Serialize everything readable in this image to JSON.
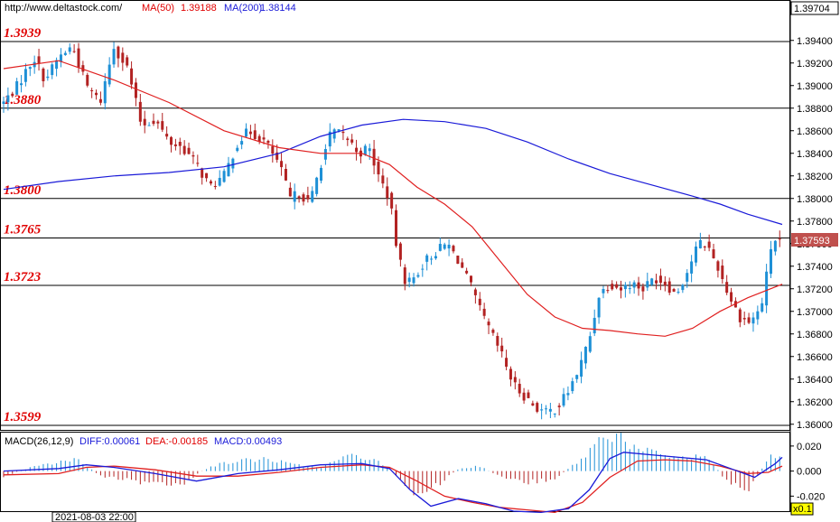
{
  "header": {
    "url": "http://www.deltastock.com/",
    "ma50_label": "MA(50)",
    "ma50_value": "1.39188",
    "ma200_label": "MA(200)",
    "ma200_value": "1.38144",
    "top_right_price": "1.39704"
  },
  "macd_header": {
    "title": "MACD(26,12,9)",
    "diff_text": "DIFF:0.00061",
    "dea_text": "DEA:-0.00185",
    "macd_text": "MACD:0.00493"
  },
  "bottom": {
    "date_label": "2021-08-03 22:00",
    "zoom_label": "x0.1"
  },
  "colors": {
    "up": "#1e90d6",
    "down": "#b22222",
    "ma50": "#e02020",
    "ma200": "#1a1ad8",
    "grid": "#000000"
  },
  "chart_data": [
    {
      "type": "candlestick",
      "ylim": [
        1.3595,
        1.3975
      ],
      "y_ticks": [
        "1.39400",
        "1.39200",
        "1.39000",
        "1.38800",
        "1.38600",
        "1.38400",
        "1.38200",
        "1.38000",
        "1.37800",
        "1.37600",
        "1.37400",
        "1.37200",
        "1.37000",
        "1.36800",
        "1.36600",
        "1.36400",
        "1.36200",
        "1.36000"
      ],
      "levels": [
        {
          "value": 1.3939,
          "label": "1.3939"
        },
        {
          "value": 1.388,
          "label": "1.3880"
        },
        {
          "value": 1.38,
          "label": "1.3800"
        },
        {
          "value": 1.3765,
          "label": "1.3765"
        },
        {
          "value": 1.3723,
          "label": "1.3723"
        },
        {
          "value": 1.3599,
          "label": "1.3599"
        }
      ],
      "last_price": "1.37593",
      "close_path": [
        [
          0,
          1.3885
        ],
        [
          10,
          1.39
        ],
        [
          22,
          1.3925
        ],
        [
          30,
          1.3905
        ],
        [
          40,
          1.3925
        ],
        [
          50,
          1.3935
        ],
        [
          60,
          1.39
        ],
        [
          70,
          1.3885
        ],
        [
          80,
          1.3935
        ],
        [
          90,
          1.3915
        ],
        [
          95,
          1.389
        ],
        [
          100,
          1.3865
        ],
        [
          110,
          1.387
        ],
        [
          120,
          1.385
        ],
        [
          130,
          1.3845
        ],
        [
          140,
          1.383
        ],
        [
          150,
          1.381
        ],
        [
          160,
          1.382
        ],
        [
          170,
          1.385
        ],
        [
          178,
          1.386
        ],
        [
          190,
          1.385
        ],
        [
          200,
          1.383
        ],
        [
          208,
          1.38
        ],
        [
          215,
          1.3805
        ],
        [
          222,
          1.3795
        ],
        [
          230,
          1.383
        ],
        [
          238,
          1.386
        ],
        [
          248,
          1.3855
        ],
        [
          258,
          1.384
        ],
        [
          265,
          1.3845
        ],
        [
          272,
          1.382
        ],
        [
          280,
          1.38
        ],
        [
          286,
          1.375
        ],
        [
          292,
          1.3725
        ],
        [
          298,
          1.373
        ],
        [
          306,
          1.3745
        ],
        [
          316,
          1.3755
        ],
        [
          322,
          1.376
        ],
        [
          330,
          1.3745
        ],
        [
          338,
          1.3725
        ],
        [
          346,
          1.37
        ],
        [
          354,
          1.368
        ],
        [
          362,
          1.366
        ],
        [
          370,
          1.3635
        ],
        [
          378,
          1.3625
        ],
        [
          386,
          1.3615
        ],
        [
          394,
          1.361
        ],
        [
          402,
          1.3615
        ],
        [
          410,
          1.363
        ],
        [
          418,
          1.365
        ],
        [
          426,
          1.368
        ],
        [
          432,
          1.3715
        ],
        [
          440,
          1.3725
        ],
        [
          448,
          1.372
        ],
        [
          456,
          1.3725
        ],
        [
          464,
          1.372
        ],
        [
          472,
          1.373
        ],
        [
          480,
          1.3725
        ],
        [
          488,
          1.3715
        ],
        [
          496,
          1.3735
        ],
        [
          504,
          1.376
        ],
        [
          510,
          1.376
        ],
        [
          518,
          1.374
        ],
        [
          526,
          1.3715
        ],
        [
          534,
          1.3695
        ],
        [
          542,
          1.369
        ],
        [
          550,
          1.3705
        ],
        [
          558,
          1.3765
        ],
        [
          565,
          1.376
        ]
      ],
      "ma50": [
        [
          0,
          1.3915
        ],
        [
          40,
          1.3922
        ],
        [
          80,
          1.3905
        ],
        [
          120,
          1.3885
        ],
        [
          160,
          1.386
        ],
        [
          200,
          1.3845
        ],
        [
          230,
          1.384
        ],
        [
          260,
          1.384
        ],
        [
          280,
          1.383
        ],
        [
          300,
          1.381
        ],
        [
          320,
          1.3795
        ],
        [
          340,
          1.3775
        ],
        [
          360,
          1.3745
        ],
        [
          380,
          1.3715
        ],
        [
          400,
          1.3695
        ],
        [
          420,
          1.3685
        ],
        [
          440,
          1.3683
        ],
        [
          460,
          1.368
        ],
        [
          480,
          1.3678
        ],
        [
          500,
          1.3685
        ],
        [
          520,
          1.37
        ],
        [
          540,
          1.3712
        ],
        [
          565,
          1.3724
        ]
      ],
      "ma200": [
        [
          0,
          1.3808
        ],
        [
          40,
          1.3815
        ],
        [
          80,
          1.382
        ],
        [
          120,
          1.3823
        ],
        [
          160,
          1.3828
        ],
        [
          200,
          1.384
        ],
        [
          230,
          1.3855
        ],
        [
          260,
          1.3865
        ],
        [
          290,
          1.387
        ],
        [
          320,
          1.3868
        ],
        [
          350,
          1.3862
        ],
        [
          380,
          1.385
        ],
        [
          410,
          1.3835
        ],
        [
          440,
          1.3822
        ],
        [
          470,
          1.3812
        ],
        [
          500,
          1.3802
        ],
        [
          520,
          1.3795
        ],
        [
          540,
          1.3786
        ],
        [
          565,
          1.3777
        ]
      ]
    },
    {
      "type": "macd",
      "ylim": [
        -0.032,
        0.03
      ],
      "y_ticks": [
        "0.020",
        "0.000",
        "-0.020"
      ],
      "diff": [
        [
          0,
          0.0
        ],
        [
          40,
          0.002
        ],
        [
          60,
          0.005
        ],
        [
          80,
          0.003
        ],
        [
          110,
          -0.002
        ],
        [
          140,
          -0.008
        ],
        [
          170,
          -0.002
        ],
        [
          200,
          0.001
        ],
        [
          230,
          0.005
        ],
        [
          260,
          0.006
        ],
        [
          280,
          0.002
        ],
        [
          295,
          -0.015
        ],
        [
          310,
          -0.028
        ],
        [
          330,
          -0.022
        ],
        [
          350,
          -0.026
        ],
        [
          370,
          -0.032
        ],
        [
          390,
          -0.033
        ],
        [
          410,
          -0.03
        ],
        [
          425,
          -0.015
        ],
        [
          440,
          0.01
        ],
        [
          450,
          0.015
        ],
        [
          470,
          0.013
        ],
        [
          490,
          0.011
        ],
        [
          510,
          0.009
        ],
        [
          530,
          0.001
        ],
        [
          545,
          -0.005
        ],
        [
          560,
          0.006
        ],
        [
          565,
          0.011
        ]
      ],
      "dea": [
        [
          0,
          -0.003
        ],
        [
          40,
          -0.002
        ],
        [
          60,
          0.003
        ],
        [
          80,
          0.004
        ],
        [
          110,
          0.001
        ],
        [
          140,
          -0.004
        ],
        [
          170,
          -0.004
        ],
        [
          200,
          -0.001
        ],
        [
          230,
          0.003
        ],
        [
          260,
          0.005
        ],
        [
          280,
          0.003
        ],
        [
          300,
          -0.008
        ],
        [
          320,
          -0.02
        ],
        [
          340,
          -0.025
        ],
        [
          360,
          -0.029
        ],
        [
          380,
          -0.031
        ],
        [
          400,
          -0.033
        ],
        [
          420,
          -0.025
        ],
        [
          440,
          -0.005
        ],
        [
          460,
          0.008
        ],
        [
          480,
          0.009
        ],
        [
          500,
          0.008
        ],
        [
          520,
          0.004
        ],
        [
          540,
          -0.002
        ],
        [
          555,
          -0.001
        ],
        [
          565,
          0.004
        ]
      ],
      "hist": [
        [
          0,
          -0.004
        ],
        [
          20,
          0.003
        ],
        [
          40,
          0.007
        ],
        [
          55,
          0.009
        ],
        [
          70,
          -0.004
        ],
        [
          90,
          -0.007
        ],
        [
          110,
          -0.011
        ],
        [
          130,
          -0.01
        ],
        [
          150,
          0.004
        ],
        [
          170,
          0.008
        ],
        [
          190,
          0.01
        ],
        [
          210,
          0.005
        ],
        [
          230,
          0.003
        ],
        [
          250,
          0.012
        ],
        [
          265,
          0.011
        ],
        [
          280,
          0.002
        ],
        [
          290,
          -0.01
        ],
        [
          300,
          -0.02
        ],
        [
          310,
          -0.016
        ],
        [
          330,
          0.002
        ],
        [
          345,
          0.004
        ],
        [
          360,
          -0.004
        ],
        [
          380,
          -0.009
        ],
        [
          400,
          -0.006
        ],
        [
          420,
          0.01
        ],
        [
          435,
          0.028
        ],
        [
          445,
          0.031
        ],
        [
          460,
          0.016
        ],
        [
          480,
          0.013
        ],
        [
          495,
          0.01
        ],
        [
          510,
          0.012
        ],
        [
          525,
          -0.008
        ],
        [
          540,
          -0.015
        ],
        [
          555,
          0.01
        ],
        [
          565,
          0.014
        ]
      ]
    }
  ]
}
